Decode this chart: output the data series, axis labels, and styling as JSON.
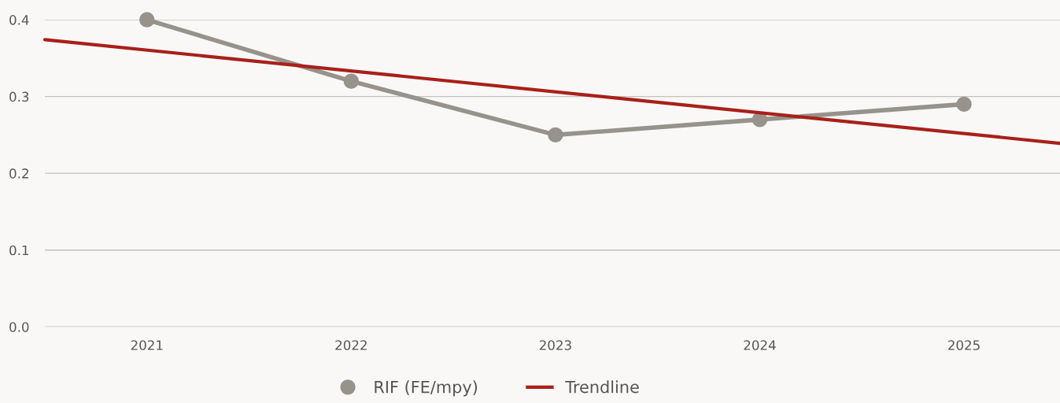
{
  "chart_data": {
    "type": "line",
    "x": [
      2021,
      2022,
      2023,
      2024,
      2025
    ],
    "xlim": [
      2020.5,
      2025.47
    ],
    "xticks": [
      2021,
      2022,
      2023,
      2024,
      2025
    ],
    "ylim": [
      0,
      0.4
    ],
    "yticks": [
      {
        "value": 0,
        "label": "0.0"
      },
      0.1,
      0.2,
      0.3,
      0.4
    ],
    "grid": "y",
    "legend": "bottom",
    "series": [
      {
        "name": "RIF (FE/mpy)",
        "color": "#97928b",
        "values": [
          0.4,
          0.32,
          0.25,
          0.27,
          0.29
        ],
        "marker": "circle"
      },
      {
        "name": "Trendline",
        "color": "#a8201a",
        "x": [
          2020.5,
          2025.47
        ],
        "values": [
          0.374,
          0.239
        ],
        "marker": "none"
      }
    ]
  }
}
